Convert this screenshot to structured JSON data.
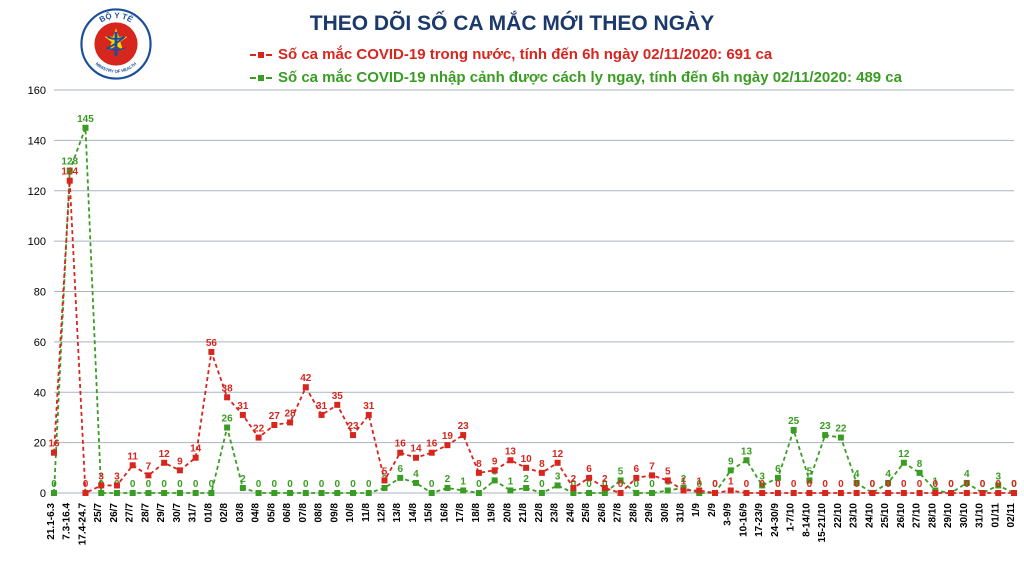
{
  "title": "THEO DÕI SỐ CA MẮC MỚI THEO NGÀY",
  "title_fontsize": 21,
  "title_color": "#1b3a6b",
  "legend": {
    "fontsize": 15,
    "items": [
      {
        "key": "domestic",
        "color": "#d7261e",
        "label": "Số ca mắc COVID-19 trong nước, tính đến 6h ngày 02/11/2020: 691 ca"
      },
      {
        "key": "imported",
        "color": "#3a9d23",
        "label": "Số ca mắc COVID-19 nhập cảnh được cách ly ngay, tính đến 6h ngày 02/11/2020: 489 ca"
      }
    ]
  },
  "logo": {
    "outer_text_top": "BỘ Y TẾ",
    "outer_text_bottom": "MINISTRY OF HEALTH",
    "ring_color": "#1a4f9b",
    "flag_bg": "#d7261e",
    "flag_star": "#ffd400",
    "staff_color": "#1a4f9b"
  },
  "chart": {
    "type": "line",
    "background_color": "#ffffff",
    "grid_color": "#aab3bf",
    "ylim": [
      0,
      160
    ],
    "ytick_step": 20,
    "ytick_fontsize": 11,
    "xtick_fontsize": 10,
    "value_label_fontsize": 10,
    "line_width": 1.8,
    "dash": "4 3",
    "marker_size": 3,
    "categories": [
      "21.1-6.3",
      "7.3-16.4",
      "17.4-24.7",
      "25/7",
      "26/7",
      "27/7",
      "28/7",
      "29/7",
      "30/7",
      "31/7",
      "01/8",
      "02/8",
      "03/8",
      "04/8",
      "05/8",
      "06/8",
      "07/8",
      "08/8",
      "09/8",
      "10/8",
      "11/8",
      "12/8",
      "13/8",
      "14/8",
      "15/8",
      "16/8",
      "17/8",
      "18/8",
      "19/8",
      "20/8",
      "21/8",
      "22/8",
      "23/8",
      "24/8",
      "25/8",
      "26/8",
      "27/8",
      "28/8",
      "29/8",
      "30/8",
      "31/8",
      "1/9",
      "2/9",
      "3-9/9",
      "10-16/9",
      "17-23/9",
      "24-30/9",
      "1-7/10",
      "8-14/10",
      "15-21/10",
      "22/10",
      "23/10",
      "24/10",
      "25/10",
      "26/10",
      "27/10",
      "28/10",
      "29/10",
      "30/10",
      "31/10",
      "01/11",
      "02/11"
    ],
    "series": {
      "domestic": {
        "color": "#d7261e",
        "values": [
          16,
          124,
          0,
          3,
          3,
          11,
          7,
          12,
          9,
          14,
          56,
          38,
          31,
          22,
          27,
          28,
          42,
          31,
          35,
          23,
          31,
          5,
          16,
          14,
          16,
          19,
          23,
          8,
          9,
          13,
          10,
          8,
          12,
          2,
          6,
          2,
          0,
          6,
          7,
          5,
          1,
          1,
          0,
          1,
          0,
          0,
          0,
          0,
          0,
          0,
          0,
          0,
          0,
          0,
          0,
          0,
          0,
          0,
          0,
          0,
          0,
          0
        ]
      },
      "imported": {
        "color": "#3a9d23",
        "values": [
          0,
          128,
          145,
          0,
          0,
          0,
          0,
          0,
          0,
          0,
          0,
          26,
          2,
          0,
          0,
          0,
          0,
          0,
          0,
          0,
          0,
          2,
          6,
          4,
          0,
          2,
          1,
          0,
          5,
          1,
          2,
          0,
          3,
          0,
          0,
          0,
          5,
          0,
          0,
          1,
          2,
          0,
          0,
          9,
          13,
          3,
          6,
          25,
          5,
          23,
          22,
          4,
          0,
          4,
          12,
          8,
          1,
          0,
          4,
          0,
          3,
          0
        ]
      }
    }
  }
}
